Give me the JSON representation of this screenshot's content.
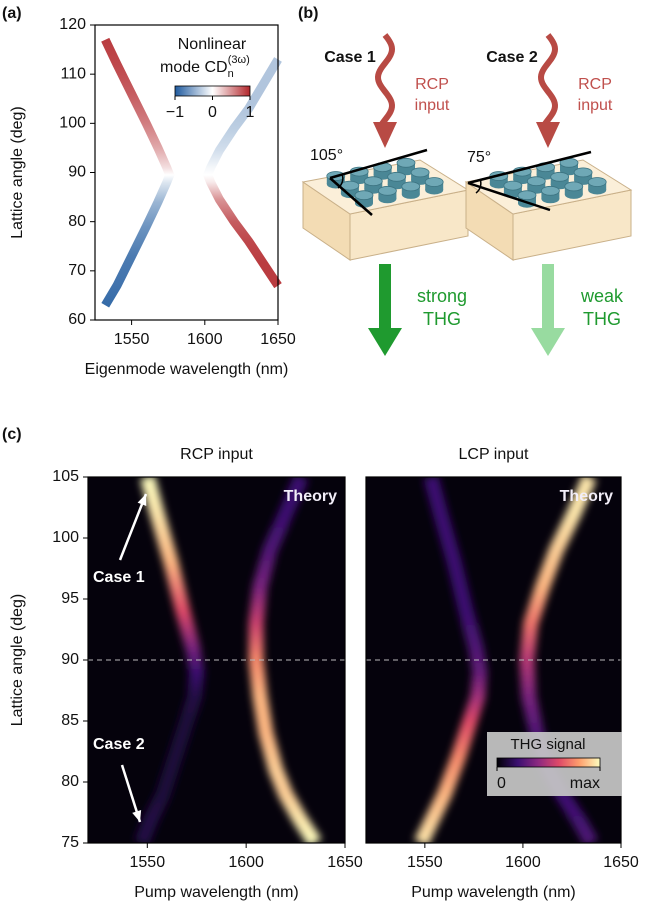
{
  "chart_data": [
    {
      "type": "line",
      "panel_label": "(a)",
      "xlabel": "Eigenmode wavelength (nm)",
      "ylabel": "Lattice angle (deg)",
      "xlim": [
        1525,
        1650
      ],
      "xticks": [
        1550,
        1600,
        1650
      ],
      "ylim": [
        60,
        120
      ],
      "yticks": [
        60,
        70,
        80,
        90,
        100,
        110,
        120
      ],
      "series": [
        {
          "x": [
            1532,
            1540,
            1550,
            1560,
            1568,
            1574,
            1576,
            1574,
            1568,
            1560,
            1550,
            1540,
            1532
          ],
          "values": [
            117,
            112,
            106,
            100,
            95,
            91,
            89.5,
            88,
            84,
            79,
            73,
            67,
            63
          ],
          "cd": [
            0.9,
            0.85,
            0.75,
            0.6,
            0.4,
            0.15,
            0,
            -0.15,
            -0.45,
            -0.65,
            -0.8,
            -0.85,
            -0.9
          ]
        },
        {
          "x": [
            1650,
            1640,
            1630,
            1620,
            1610,
            1604,
            1602,
            1604,
            1610,
            1620,
            1630,
            1640,
            1650
          ],
          "values": [
            113,
            108,
            103,
            99,
            94.5,
            91,
            89.5,
            88,
            84.5,
            80,
            76,
            71.5,
            67
          ],
          "cd": [
            -0.35,
            -0.35,
            -0.35,
            -0.3,
            -0.2,
            -0.05,
            0,
            0.1,
            0.5,
            0.75,
            0.85,
            0.9,
            0.9
          ]
        }
      ],
      "colorbar": {
        "label": "Nonlinear",
        "label2": "mode CD",
        "label_sub": "n",
        "label_sup": "(3ω)",
        "lim": [
          -1,
          1
        ],
        "ticks": [
          {
            "value": -1,
            "label": "−1"
          },
          0,
          1
        ],
        "colors": [
          "#1f5a9e",
          "#ffffff",
          "#b2262b"
        ]
      }
    },
    {
      "type": "heatmap",
      "panel_label": "(c)",
      "title": "RCP input",
      "xlabel": "Pump wavelength (nm)",
      "ylabel": "Lattice angle (deg)",
      "xlim": [
        1520,
        1650
      ],
      "xticks": [
        1550,
        1600,
        1650
      ],
      "ylim": [
        75,
        105
      ],
      "yticks": [
        75,
        80,
        85,
        90,
        95,
        100,
        105
      ],
      "hline": 90,
      "annotation": "Theory",
      "annotations": [
        "Case 1",
        "Case 2"
      ],
      "series": [
        {
          "x": [
            1550,
            1555,
            1562,
            1568,
            1573,
            1575,
            1574,
            1570,
            1564,
            1558,
            1552,
            1547
          ],
          "values": [
            105,
            102,
            98,
            94,
            91,
            89,
            87,
            85,
            82,
            79,
            77,
            75
          ],
          "intensity": [
            1,
            0.95,
            0.85,
            0.6,
            0.35,
            0.2,
            0.12,
            0.1,
            0.1,
            0.1,
            0.12,
            0.12
          ]
        },
        {
          "x": [
            1628,
            1620,
            1612,
            1607,
            1605,
            1605,
            1607,
            1610,
            1615,
            1620,
            1627,
            1635
          ],
          "values": [
            105,
            102,
            99,
            96,
            93,
            90,
            87,
            84,
            81,
            79,
            77,
            75
          ],
          "intensity": [
            0.2,
            0.2,
            0.25,
            0.35,
            0.55,
            0.75,
            0.85,
            0.85,
            0.9,
            0.9,
            0.95,
            1
          ]
        }
      ]
    },
    {
      "type": "heatmap",
      "title": "LCP input",
      "xlabel": "Pump wavelength (nm)",
      "xlim": [
        1520,
        1650
      ],
      "xticks": [
        1550,
        1600,
        1650
      ],
      "ylim": [
        75,
        105
      ],
      "hline": 90,
      "annotation": "Theory",
      "series": [
        {
          "x": [
            1553,
            1558,
            1565,
            1571,
            1576,
            1578,
            1577,
            1573,
            1567,
            1560,
            1554,
            1548
          ],
          "values": [
            105,
            102,
            98,
            94,
            91,
            89,
            87,
            85,
            82,
            79,
            77,
            75
          ],
          "intensity": [
            0.2,
            0.2,
            0.2,
            0.2,
            0.25,
            0.3,
            0.45,
            0.6,
            0.75,
            0.85,
            0.9,
            0.95
          ]
        },
        {
          "x": [
            1634,
            1626,
            1617,
            1610,
            1604,
            1602,
            1603,
            1607,
            1613,
            1620,
            1628,
            1635
          ],
          "values": [
            105,
            102,
            99,
            96,
            93,
            90,
            87,
            84,
            81,
            79,
            77,
            75
          ],
          "intensity": [
            0.95,
            0.95,
            0.9,
            0.85,
            0.7,
            0.5,
            0.35,
            0.25,
            0.2,
            0.2,
            0.22,
            0.25
          ]
        }
      ],
      "colorbar": {
        "label": "THG signal",
        "lim": [
          0,
          1
        ],
        "ticks": [
          0,
          {
            "value": 1,
            "label": "max"
          }
        ],
        "colors": [
          "#000004",
          "#3b0f70",
          "#8c2981",
          "#de4968",
          "#fe9f6d",
          "#fcfdbf"
        ]
      }
    }
  ],
  "diagram": {
    "panel_label": "(b)",
    "cases": [
      {
        "title": "Case 1",
        "angle": "105°",
        "input_lines": [
          "RCP",
          "input"
        ],
        "output_lines": [
          "strong",
          "THG"
        ]
      },
      {
        "title": "Case 2",
        "angle": "75°",
        "input_lines": [
          "RCP",
          "input"
        ],
        "output_lines": [
          "weak",
          "THG"
        ]
      }
    ]
  }
}
